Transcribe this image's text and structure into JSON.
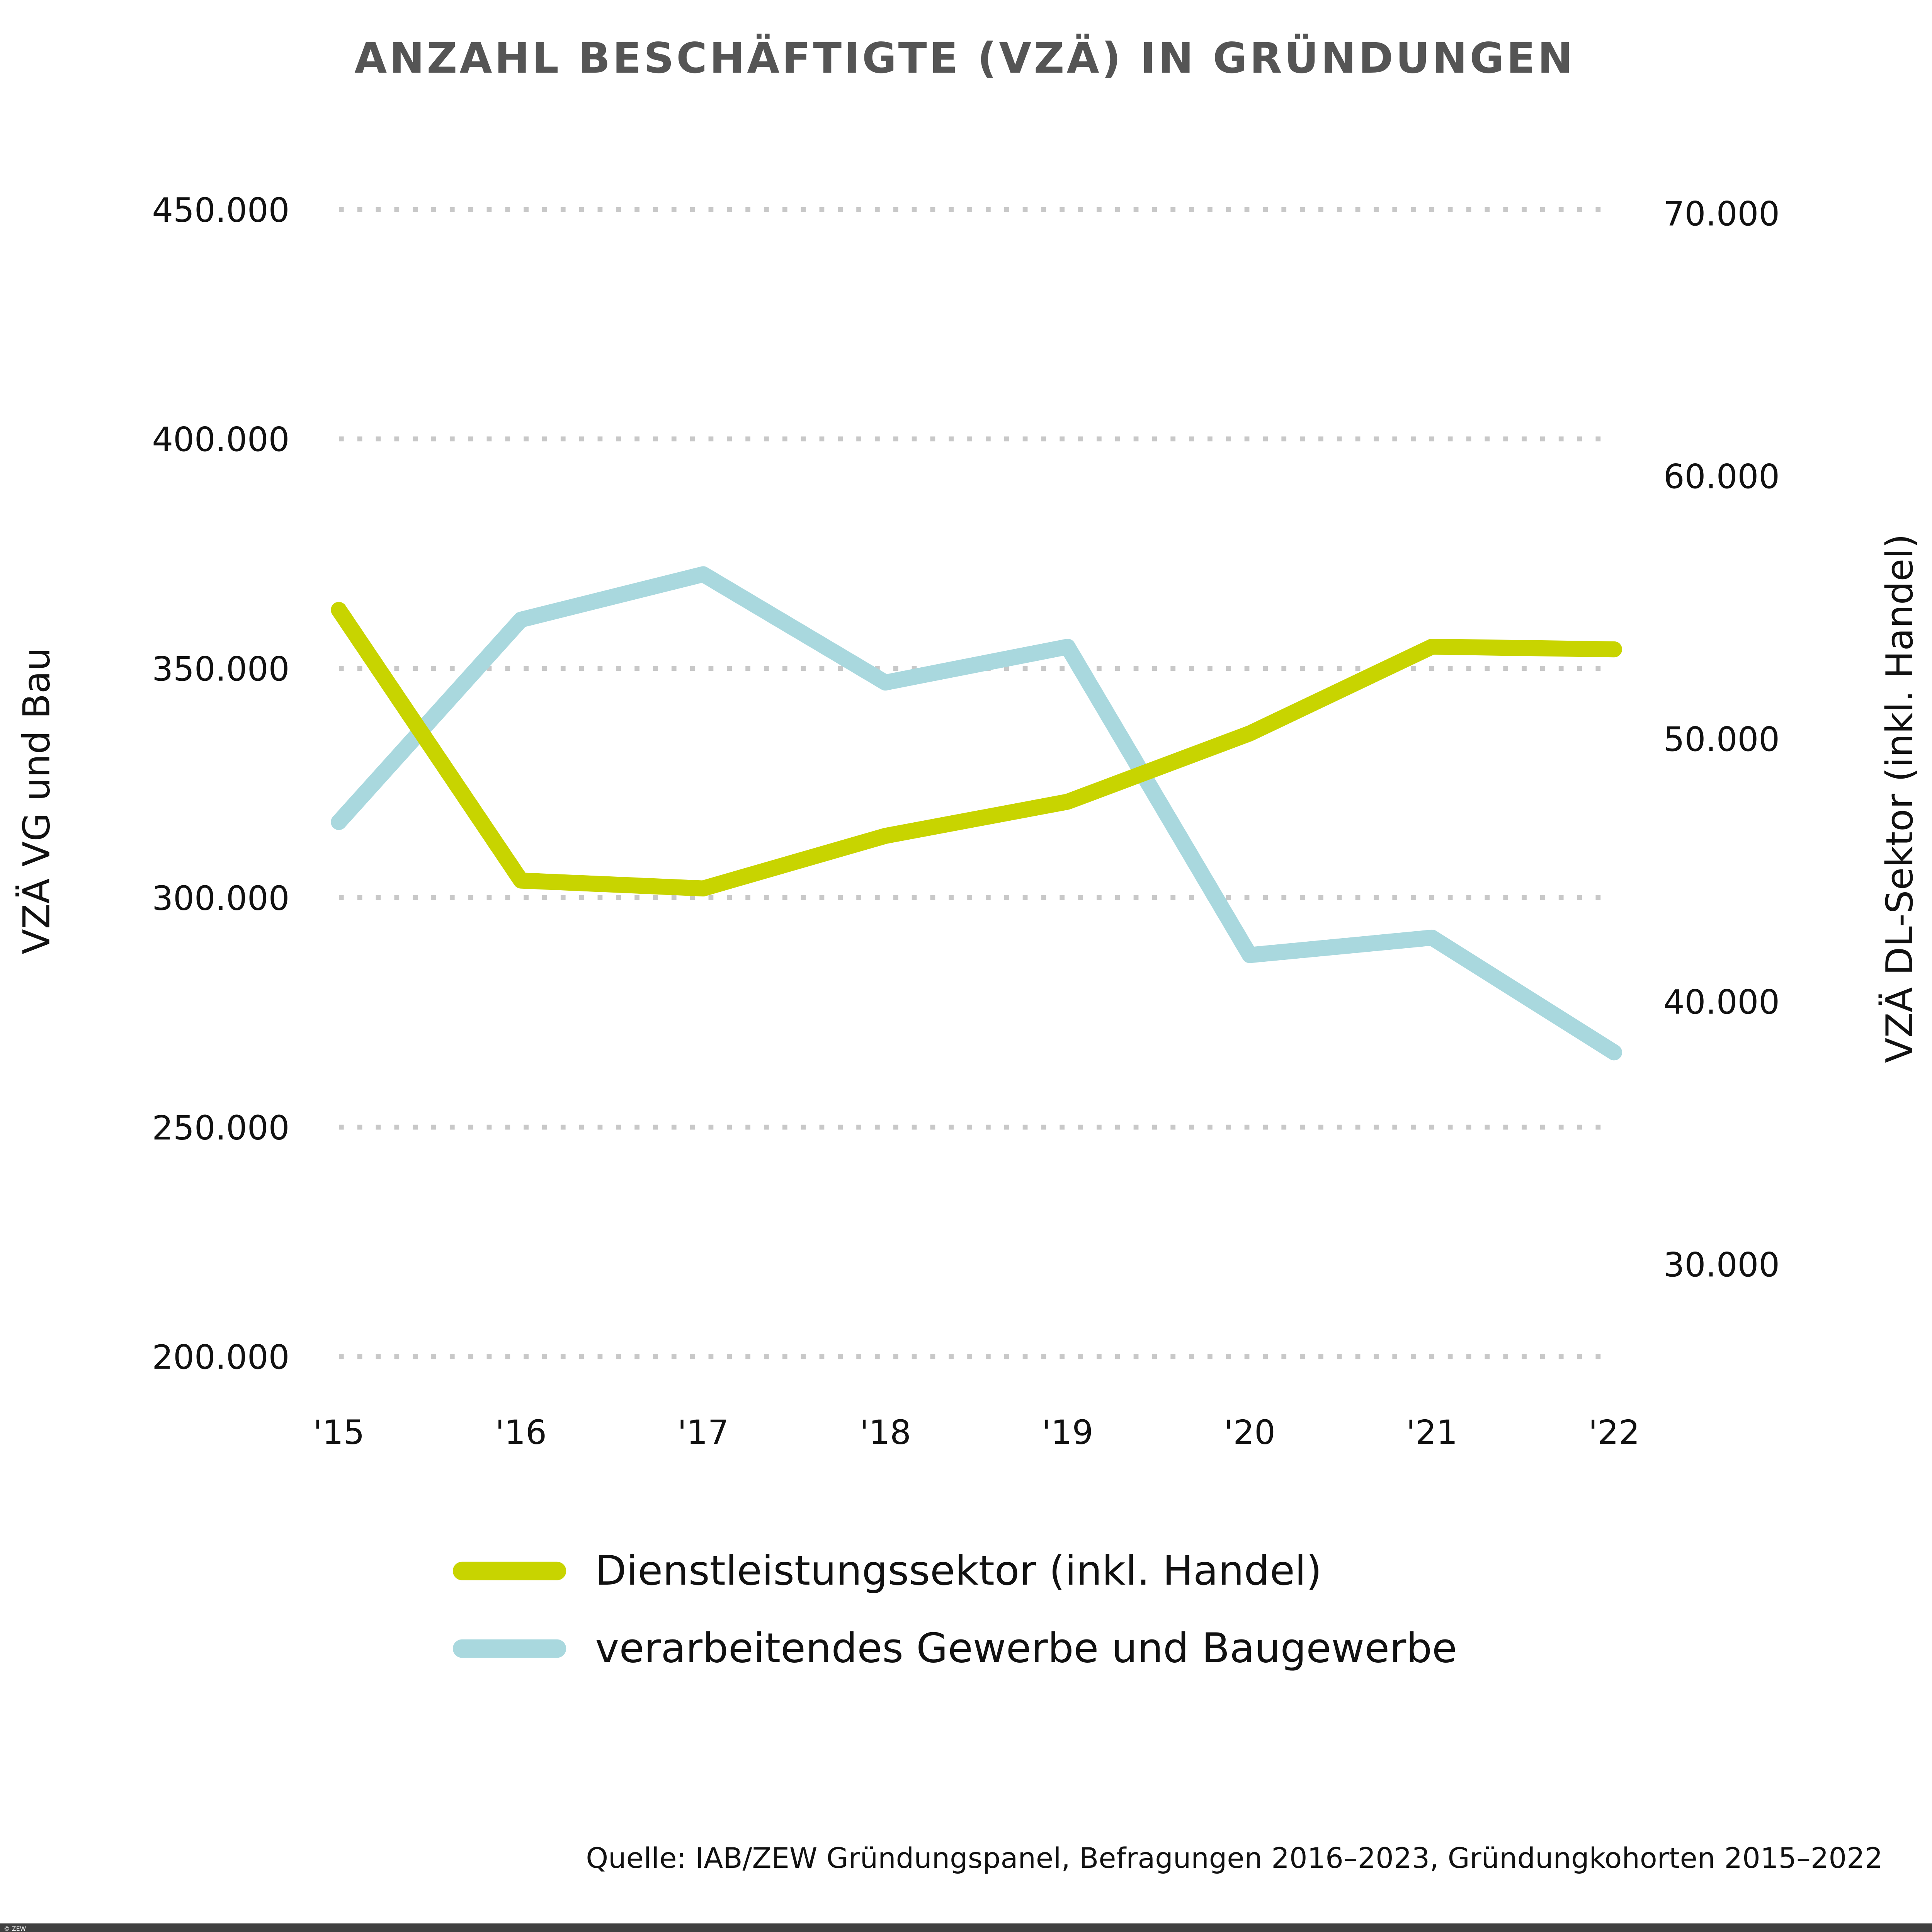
{
  "chart_data": {
    "type": "line",
    "title": "ANZAHL BESCHÄFTIGTE (VZÄ) IN GRÜNDUNGEN",
    "x": [
      "'15",
      "'16",
      "'17",
      "'18",
      "'19",
      "'20",
      "'21",
      "'22"
    ],
    "ylabel_left": "VZÄ VG und Bau",
    "ylabel_right": "VZÄ DL-Sektor (inkl. Handel)",
    "ylim_left": [
      200000,
      450000
    ],
    "yticks_left": [
      "200.000",
      "250.000",
      "300.000",
      "350.000",
      "400.000",
      "450.000"
    ],
    "yticks_left_values": [
      200000,
      250000,
      300000,
      350000,
      400000,
      450000
    ],
    "ylim_right": [
      30000,
      70000
    ],
    "yticks_right": [
      "30.000",
      "40.000",
      "50.000",
      "60.000",
      "70.000"
    ],
    "yticks_right_values": [
      30000,
      40000,
      50000,
      60000,
      70000
    ],
    "grid": "horizontal dotted (left axis)",
    "legend_placement": "bottom",
    "series": [
      {
        "name": "Dienstleistungssektor (inkl. Handel)",
        "axis": "right",
        "color": "#c8d400",
        "values": [
          54900,
          44600,
          44300,
          46300,
          47600,
          50200,
          53500,
          53400
        ]
      },
      {
        "name": "verarbeitendes Gewerbe und Baugewerbe",
        "axis": "left",
        "color": "#a9d8de",
        "values": [
          316500,
          360600,
          370500,
          346900,
          354700,
          287500,
          291300,
          266300
        ]
      }
    ],
    "source": "Quelle: IAB/ZEW Gründungspanel, Befragungen 2016–2023, Gründungkohorten 2015–2022"
  },
  "footer": {
    "copyright": "© ZEW",
    "bar_color": "#404040"
  }
}
